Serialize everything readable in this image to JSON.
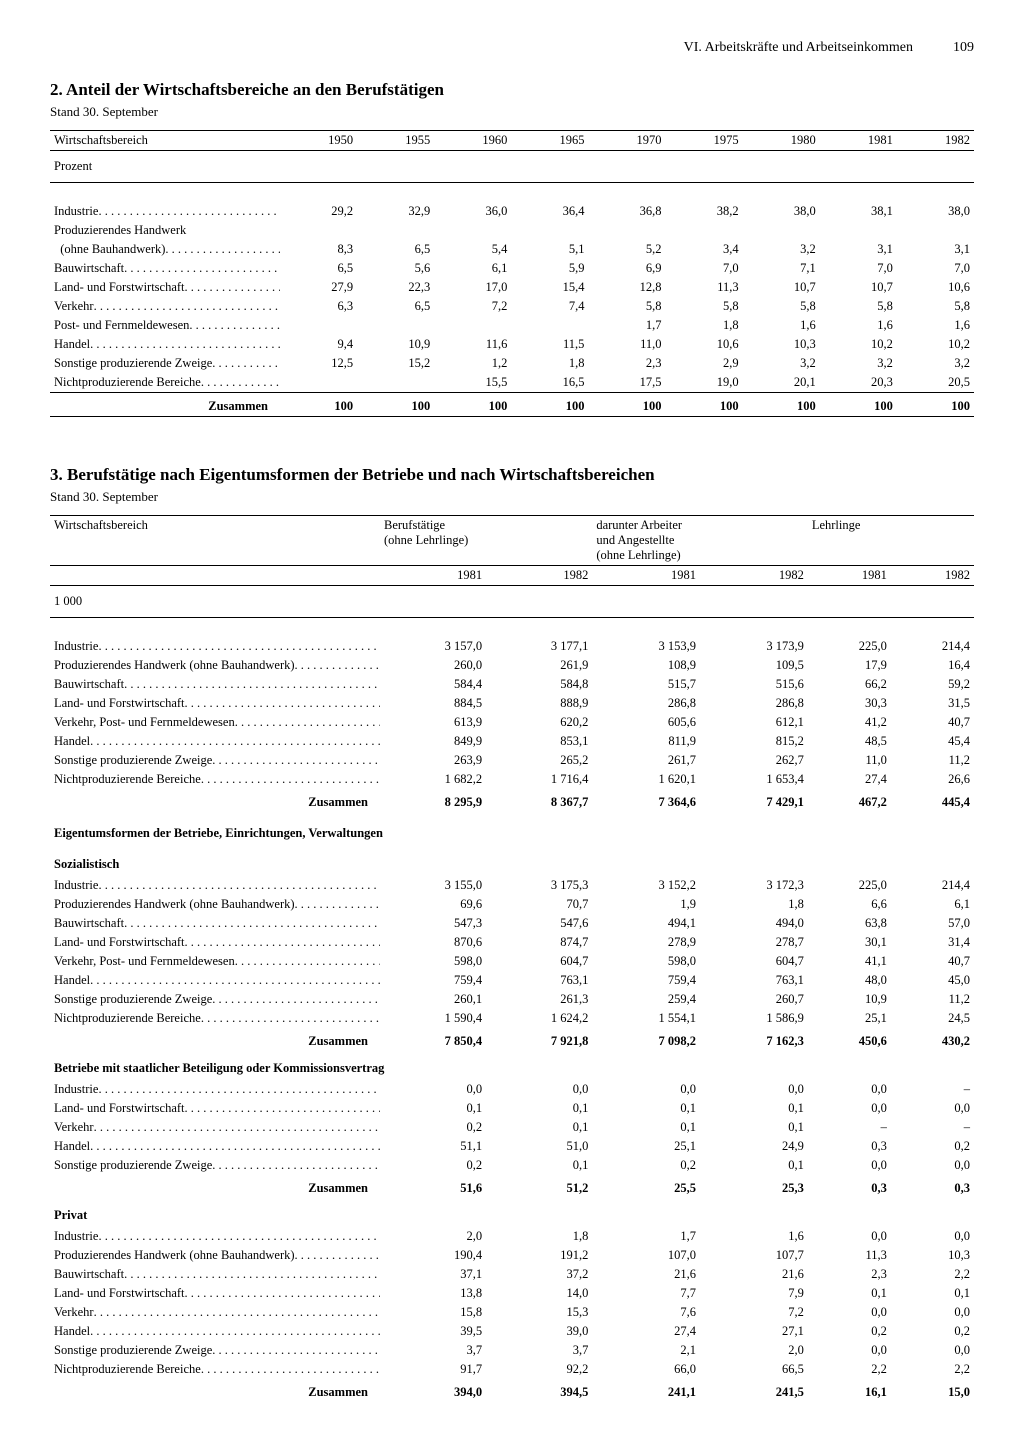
{
  "header": {
    "section": "VI. Arbeitskräfte und Arbeitseinkommen",
    "page": "109"
  },
  "t2": {
    "title": "2. Anteil der Wirtschaftsbereiche an den Berufstätigen",
    "stand": "Stand 30. September",
    "col_label": "Wirtschaftsbereich",
    "years": [
      "1950",
      "1955",
      "1960",
      "1965",
      "1970",
      "1975",
      "1980",
      "1981",
      "1982"
    ],
    "unit": "Prozent",
    "rows": [
      {
        "l": "Industrie",
        "v": [
          "29,2",
          "32,9",
          "36,0",
          "36,4",
          "36,8",
          "38,2",
          "38,0",
          "38,1",
          "38,0"
        ],
        "dots": true
      },
      {
        "l": "Produzierendes Handwerk",
        "nodata": true
      },
      {
        "l": "  (ohne Bauhandwerk)",
        "v": [
          "8,3",
          "6,5",
          "5,4",
          "5,1",
          "5,2",
          "3,4",
          "3,2",
          "3,1",
          "3,1"
        ],
        "dots": true
      },
      {
        "l": "Bauwirtschaft",
        "v": [
          "6,5",
          "5,6",
          "6,1",
          "5,9",
          "6,9",
          "7,0",
          "7,1",
          "7,0",
          "7,0"
        ],
        "dots": true
      },
      {
        "l": "Land- und Forstwirtschaft",
        "v": [
          "27,9",
          "22,3",
          "17,0",
          "15,4",
          "12,8",
          "11,3",
          "10,7",
          "10,7",
          "10,6"
        ],
        "dots": true
      },
      {
        "l": "Verkehr",
        "v": [
          "",
          "",
          "",
          "",
          "5,8",
          "5,8",
          "5,8",
          "5,8",
          "5,8"
        ],
        "dots": true,
        "brace_top": true,
        "m1950": "6,3",
        "m1955": "6,5",
        "m1960": "7,2",
        "m1965": "7,4"
      },
      {
        "l": "Post- und Fernmeldewesen",
        "v": [
          "",
          "",
          "",
          "",
          "1,7",
          "1,8",
          "1,6",
          "1,6",
          "1,6"
        ],
        "dots": true,
        "brace_bot": true
      },
      {
        "l": "Handel",
        "v": [
          "9,4",
          "10,9",
          "11,6",
          "11,5",
          "11,0",
          "10,6",
          "10,3",
          "10,2",
          "10,2"
        ],
        "dots": true
      },
      {
        "l": "Sonstige produzierende Zweige",
        "v": [
          "",
          "",
          "1,2",
          "1,8",
          "2,3",
          "2,9",
          "3,2",
          "3,2",
          "3,2"
        ],
        "dots": true,
        "brace_top": true,
        "m1950": "12,5",
        "m1955": "15,2"
      },
      {
        "l": "Nichtproduzierende Bereiche",
        "v": [
          "",
          "",
          "15,5",
          "16,5",
          "17,5",
          "19,0",
          "20,1",
          "20,3",
          "20,5"
        ],
        "dots": true,
        "brace_bot": true
      }
    ],
    "sum_label": "Zusammen",
    "sum": [
      "100",
      "100",
      "100",
      "100",
      "100",
      "100",
      "100",
      "100",
      "100"
    ]
  },
  "t3": {
    "title": "3. Berufstätige nach Eigentumsformen der Betriebe und nach Wirtschaftsbereichen",
    "stand": "Stand 30. September",
    "col_label": "Wirtschaftsbereich",
    "group_headers": [
      "Berufstätige\n(ohne Lehrlinge)",
      "darunter Arbeiter\nund Angestellte\n(ohne Lehrlinge)",
      "Lehrlinge"
    ],
    "years": [
      "1981",
      "1982",
      "1981",
      "1982",
      "1981",
      "1982"
    ],
    "unit": "1 000",
    "blocks": [
      {
        "rows": [
          {
            "l": "Industrie",
            "v": [
              "3 157,0",
              "3 177,1",
              "3 153,9",
              "3 173,9",
              "225,0",
              "214,4"
            ]
          },
          {
            "l": "Produzierendes Handwerk (ohne Bauhandwerk)",
            "v": [
              "260,0",
              "261,9",
              "108,9",
              "109,5",
              "17,9",
              "16,4"
            ]
          },
          {
            "l": "Bauwirtschaft",
            "v": [
              "584,4",
              "584,8",
              "515,7",
              "515,6",
              "66,2",
              "59,2"
            ]
          },
          {
            "l": "Land- und Forstwirtschaft",
            "v": [
              "884,5",
              "888,9",
              "286,8",
              "286,8",
              "30,3",
              "31,5"
            ]
          },
          {
            "l": "Verkehr, Post- und Fernmeldewesen",
            "v": [
              "613,9",
              "620,2",
              "605,6",
              "612,1",
              "41,2",
              "40,7"
            ]
          },
          {
            "l": "Handel",
            "v": [
              "849,9",
              "853,1",
              "811,9",
              "815,2",
              "48,5",
              "45,4"
            ]
          },
          {
            "l": "Sonstige produzierende Zweige",
            "v": [
              "263,9",
              "265,2",
              "261,7",
              "262,7",
              "11,0",
              "11,2"
            ]
          },
          {
            "l": "Nichtproduzierende Bereiche",
            "v": [
              "1 682,2",
              "1 716,4",
              "1 620,1",
              "1 653,4",
              "27,4",
              "26,6"
            ]
          }
        ],
        "sum": [
          "8 295,9",
          "8 367,7",
          "7 364,6",
          "7 429,1",
          "467,2",
          "445,4"
        ]
      },
      {
        "section": "Eigentumsformen der Betriebe, Einrichtungen, Verwaltungen"
      },
      {
        "sub": "Sozialistisch",
        "rows": [
          {
            "l": "Industrie",
            "v": [
              "3 155,0",
              "3 175,3",
              "3 152,2",
              "3 172,3",
              "225,0",
              "214,4"
            ]
          },
          {
            "l": "Produzierendes Handwerk (ohne Bauhandwerk)",
            "v": [
              "69,6",
              "70,7",
              "1,9",
              "1,8",
              "6,6",
              "6,1"
            ]
          },
          {
            "l": "Bauwirtschaft",
            "v": [
              "547,3",
              "547,6",
              "494,1",
              "494,0",
              "63,8",
              "57,0"
            ]
          },
          {
            "l": "Land- und Forstwirtschaft",
            "v": [
              "870,6",
              "874,7",
              "278,9",
              "278,7",
              "30,1",
              "31,4"
            ]
          },
          {
            "l": "Verkehr, Post- und Fernmeldewesen",
            "v": [
              "598,0",
              "604,7",
              "598,0",
              "604,7",
              "41,1",
              "40,7"
            ]
          },
          {
            "l": "Handel",
            "v": [
              "759,4",
              "763,1",
              "759,4",
              "763,1",
              "48,0",
              "45,0"
            ]
          },
          {
            "l": "Sonstige produzierende Zweige",
            "v": [
              "260,1",
              "261,3",
              "259,4",
              "260,7",
              "10,9",
              "11,2"
            ]
          },
          {
            "l": "Nichtproduzierende Bereiche",
            "v": [
              "1 590,4",
              "1 624,2",
              "1 554,1",
              "1 586,9",
              "25,1",
              "24,5"
            ]
          }
        ],
        "sum": [
          "7 850,4",
          "7 921,8",
          "7 098,2",
          "7 162,3",
          "450,6",
          "430,2"
        ]
      },
      {
        "sub": "Betriebe mit staatlicher Beteiligung oder Kommissionsvertrag",
        "rows": [
          {
            "l": "Industrie",
            "v": [
              "0,0",
              "0,0",
              "0,0",
              "0,0",
              "0,0",
              "–"
            ]
          },
          {
            "l": "Land- und Forstwirtschaft",
            "v": [
              "0,1",
              "0,1",
              "0,1",
              "0,1",
              "0,0",
              "0,0"
            ]
          },
          {
            "l": "Verkehr",
            "v": [
              "0,2",
              "0,1",
              "0,1",
              "0,1",
              "–",
              "–"
            ]
          },
          {
            "l": "Handel",
            "v": [
              "51,1",
              "51,0",
              "25,1",
              "24,9",
              "0,3",
              "0,2"
            ]
          },
          {
            "l": "Sonstige produzierende Zweige",
            "v": [
              "0,2",
              "0,1",
              "0,2",
              "0,1",
              "0,0",
              "0,0"
            ]
          }
        ],
        "sum": [
          "51,6",
          "51,2",
          "25,5",
          "25,3",
          "0,3",
          "0,3"
        ]
      },
      {
        "sub": "Privat",
        "rows": [
          {
            "l": "Industrie",
            "v": [
              "2,0",
              "1,8",
              "1,7",
              "1,6",
              "0,0",
              "0,0"
            ]
          },
          {
            "l": "Produzierendes Handwerk (ohne Bauhandwerk)",
            "v": [
              "190,4",
              "191,2",
              "107,0",
              "107,7",
              "11,3",
              "10,3"
            ]
          },
          {
            "l": "Bauwirtschaft",
            "v": [
              "37,1",
              "37,2",
              "21,6",
              "21,6",
              "2,3",
              "2,2"
            ]
          },
          {
            "l": "Land- und Forstwirtschaft",
            "v": [
              "13,8",
              "14,0",
              "7,7",
              "7,9",
              "0,1",
              "0,1"
            ]
          },
          {
            "l": "Verkehr",
            "v": [
              "15,8",
              "15,3",
              "7,6",
              "7,2",
              "0,0",
              "0,0"
            ]
          },
          {
            "l": "Handel",
            "v": [
              "39,5",
              "39,0",
              "27,4",
              "27,1",
              "0,2",
              "0,2"
            ]
          },
          {
            "l": "Sonstige produzierende Zweige",
            "v": [
              "3,7",
              "3,7",
              "2,1",
              "2,0",
              "0,0",
              "0,0"
            ]
          },
          {
            "l": "Nichtproduzierende Bereiche",
            "v": [
              "91,7",
              "92,2",
              "66,0",
              "66,5",
              "2,2",
              "2,2"
            ]
          }
        ],
        "sum": [
          "394,0",
          "394,5",
          "241,1",
          "241,5",
          "16,1",
          "15,0"
        ]
      }
    ],
    "sum_label": "Zusammen"
  }
}
